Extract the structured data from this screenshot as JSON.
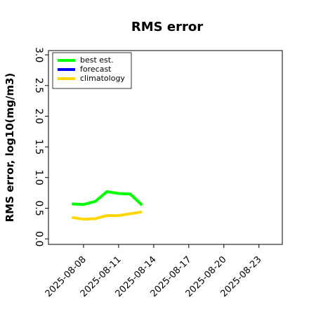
{
  "chart_data": {
    "type": "line",
    "title": "RMS error",
    "y_label": "RMS error, log10(mg/m3)",
    "x": [
      "2025-08-07",
      "2025-08-08",
      "2025-08-09",
      "2025-08-10",
      "2025-08-11",
      "2025-08-12",
      "2025-08-13"
    ],
    "series": [
      {
        "name": "best est.",
        "color": "#00ff00",
        "values": [
          0.57,
          0.56,
          0.61,
          0.77,
          0.74,
          0.73,
          0.55
        ]
      },
      {
        "name": "forecast",
        "color": "#0000ff",
        "values": [
          null,
          null,
          null,
          null,
          null,
          null,
          null
        ]
      },
      {
        "name": "climatology",
        "color": "#ffd700",
        "values": [
          0.35,
          0.32,
          0.33,
          0.38,
          0.38,
          0.41,
          0.44
        ]
      }
    ],
    "xlim": [
      "2025-08-05",
      "2025-08-25"
    ],
    "xticks": [
      "2025-08-08",
      "2025-08-11",
      "2025-08-14",
      "2025-08-17",
      "2025-08-20",
      "2025-08-23"
    ],
    "xtick_colors": [
      "#000000",
      "#000000",
      "#228b22",
      "#000000",
      "#000000",
      "#000000"
    ],
    "ylim": [
      -0.09,
      3.07
    ],
    "yticks": [
      {
        "value": 0,
        "label": "0.0"
      },
      0.5,
      {
        "value": 1,
        "label": "1.0"
      },
      1.5,
      {
        "value": 2,
        "label": "2.0"
      },
      2.5,
      {
        "value": 3,
        "label": "3.0"
      }
    ],
    "legend": "upper left",
    "grid": false
  }
}
